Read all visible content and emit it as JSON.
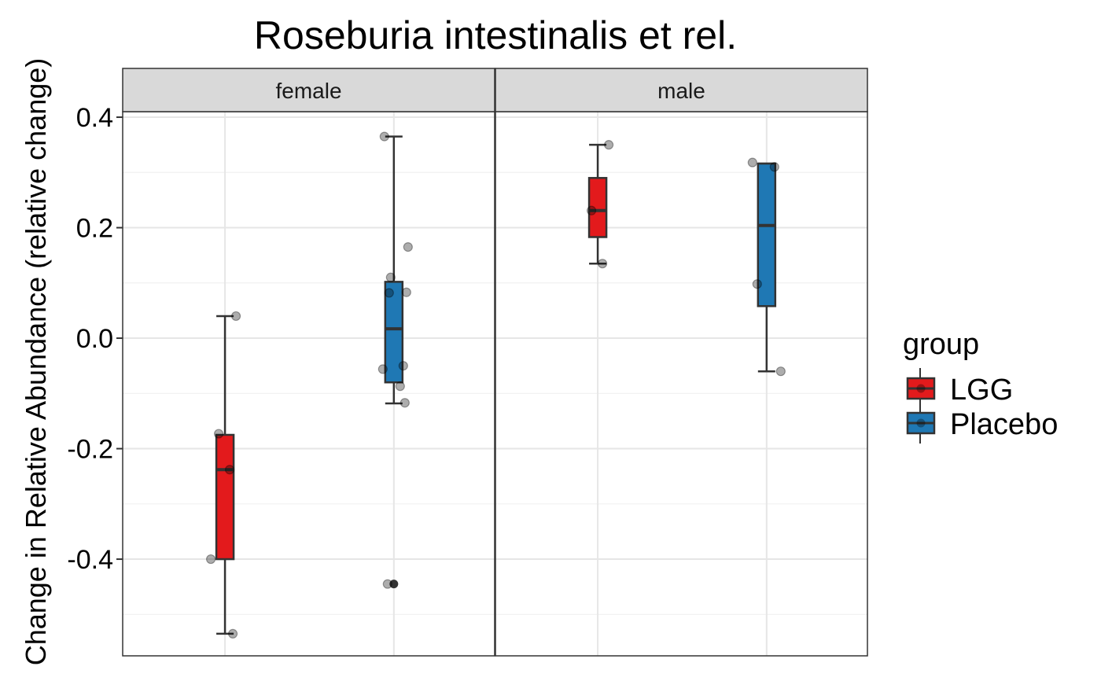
{
  "chart_data": {
    "type": "boxplot",
    "title": "Roseburia intestinalis et rel.",
    "xlabel": "",
    "ylabel": "Change in Relative Abundance (relative change)",
    "ylim": [
      -0.575,
      0.41
    ],
    "yticks": [
      -0.4,
      -0.2,
      0.0,
      0.2,
      0.4
    ],
    "ytick_labels": [
      "-0.4",
      "-0.2",
      "0.0",
      "0.2",
      "0.4"
    ],
    "grid": true,
    "legend": {
      "title": "group",
      "placement": "right",
      "entries": [
        {
          "label": "LGG",
          "color": "#E31A1C"
        },
        {
          "label": "Placebo",
          "color": "#1F78B4"
        }
      ]
    },
    "facets": [
      {
        "label": "female",
        "boxes": [
          {
            "group": "LGG",
            "whisker_low": -0.535,
            "q1": -0.4,
            "median": -0.238,
            "q3": -0.175,
            "whisker_high": 0.04,
            "outliers": []
          },
          {
            "group": "Placebo",
            "whisker_low": -0.118,
            "q1": -0.08,
            "median": 0.017,
            "q3": 0.102,
            "whisker_high": 0.365,
            "outliers": [
              -0.445
            ]
          }
        ],
        "points": [
          {
            "group": "LGG",
            "y": 0.04
          },
          {
            "group": "LGG",
            "y": -0.173
          },
          {
            "group": "LGG",
            "y": -0.238
          },
          {
            "group": "LGG",
            "y": -0.4
          },
          {
            "group": "LGG",
            "y": -0.535
          },
          {
            "group": "Placebo",
            "y": 0.365
          },
          {
            "group": "Placebo",
            "y": 0.165
          },
          {
            "group": "Placebo",
            "y": 0.11
          },
          {
            "group": "Placebo",
            "y": 0.083
          },
          {
            "group": "Placebo",
            "y": 0.082
          },
          {
            "group": "Placebo",
            "y": -0.05
          },
          {
            "group": "Placebo",
            "y": -0.056
          },
          {
            "group": "Placebo",
            "y": -0.087
          },
          {
            "group": "Placebo",
            "y": -0.117
          },
          {
            "group": "Placebo",
            "y": -0.445
          }
        ]
      },
      {
        "label": "male",
        "boxes": [
          {
            "group": "LGG",
            "whisker_low": 0.135,
            "q1": 0.183,
            "median": 0.231,
            "q3": 0.29,
            "whisker_high": 0.35,
            "outliers": []
          },
          {
            "group": "Placebo",
            "whisker_low": -0.06,
            "q1": 0.058,
            "median": 0.204,
            "q3": 0.316,
            "whisker_high": 0.316,
            "outliers": []
          }
        ],
        "points": [
          {
            "group": "LGG",
            "y": 0.35
          },
          {
            "group": "LGG",
            "y": 0.231
          },
          {
            "group": "LGG",
            "y": 0.135
          },
          {
            "group": "Placebo",
            "y": 0.318
          },
          {
            "group": "Placebo",
            "y": 0.31
          },
          {
            "group": "Placebo",
            "y": 0.098
          },
          {
            "group": "Placebo",
            "y": -0.06
          }
        ]
      }
    ]
  }
}
